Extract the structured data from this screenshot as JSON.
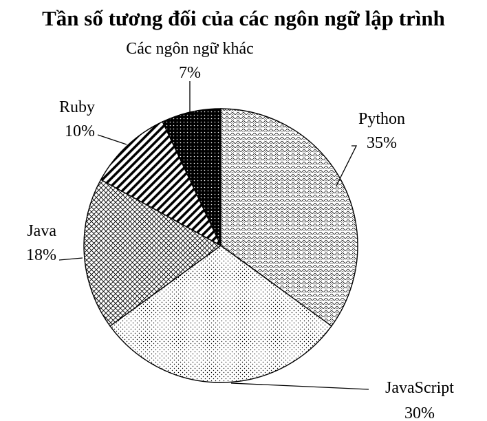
{
  "chart_data": {
    "type": "pie",
    "title": "Tần số tương đối của các ngôn ngữ lập trình",
    "slices": [
      {
        "label": "Python",
        "value": 35,
        "value_label": "35%",
        "pattern": "wave-dense"
      },
      {
        "label": "JavaScript",
        "value": 30,
        "value_label": "30%",
        "pattern": "dots"
      },
      {
        "label": "Java",
        "value": 18,
        "value_label": "18%",
        "pattern": "crosshatch"
      },
      {
        "label": "Ruby",
        "value": 10,
        "value_label": "10%",
        "pattern": "diagonal-stripes"
      },
      {
        "label": "Các ngôn ngữ khác",
        "value": 7,
        "value_label": "7%",
        "pattern": "dark-dots"
      }
    ],
    "start": "12 o'clock",
    "direction": "clockwise",
    "legend": "none",
    "colors": {
      "stroke": "#000000",
      "background": "#ffffff"
    }
  }
}
